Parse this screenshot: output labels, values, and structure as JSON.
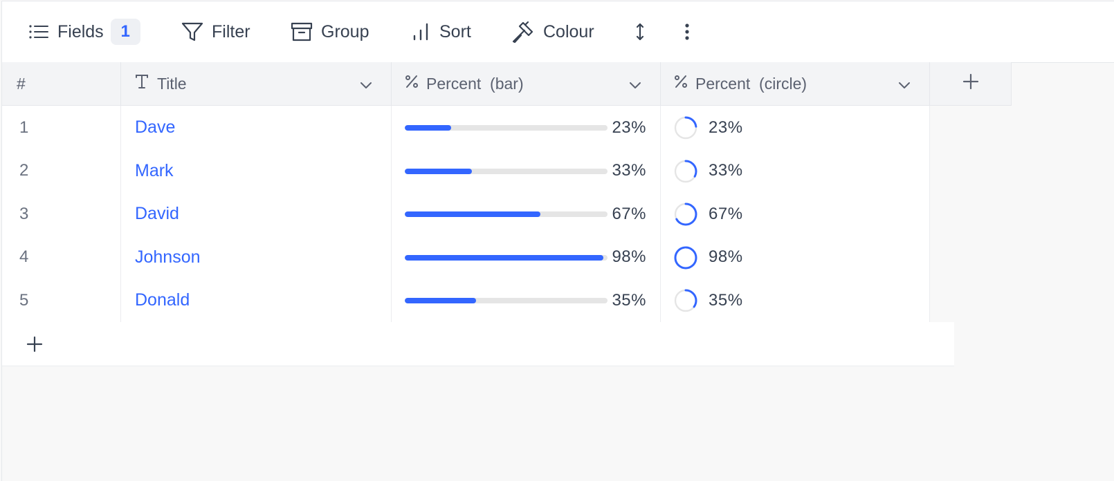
{
  "toolbar": {
    "fields_label": "Fields",
    "fields_count": "1",
    "filter_label": "Filter",
    "group_label": "Group",
    "sort_label": "Sort",
    "colour_label": "Colour"
  },
  "columns": {
    "index_header": "#",
    "title_header": "Title",
    "bar_header": "Percent  (bar)",
    "circle_header": "Percent  (circle)"
  },
  "rows": [
    {
      "index": "1",
      "title": "Dave",
      "percent_label": "23%",
      "percent": 23
    },
    {
      "index": "2",
      "title": "Mark",
      "percent_label": "33%",
      "percent": 33
    },
    {
      "index": "3",
      "title": "David",
      "percent_label": "67%",
      "percent": 67
    },
    {
      "index": "4",
      "title": "Johnson",
      "percent_label": "98%",
      "percent": 98
    },
    {
      "index": "5",
      "title": "Donald",
      "percent_label": "35%",
      "percent": 35
    }
  ],
  "colors": {
    "accent": "#3366ff",
    "track": "#e5e5e5"
  },
  "icons": {
    "fields": "list-icon",
    "filter": "filter-icon",
    "group": "archive-box-icon",
    "sort": "bar-chart-icon",
    "colour": "paint-brush-icon",
    "row_height": "vertical-arrows-icon",
    "more": "more-vertical-icon",
    "add_column": "plus-icon",
    "add_row": "plus-icon"
  }
}
